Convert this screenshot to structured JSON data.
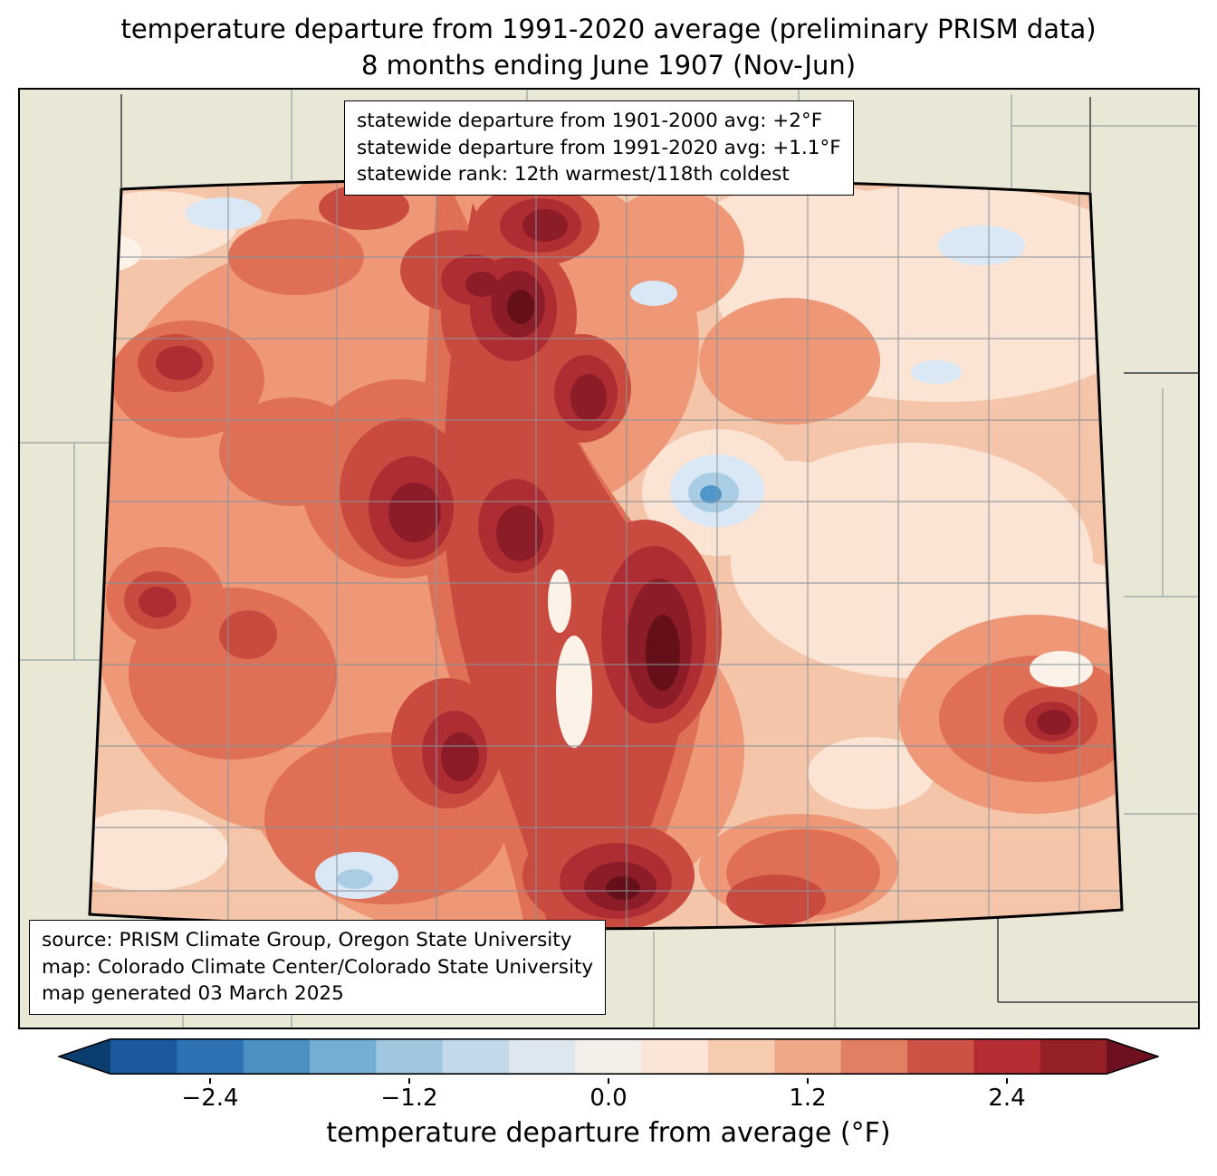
{
  "title": {
    "line1": "temperature departure from 1991-2020 average (preliminary PRISM data)",
    "line2": "8 months ending June 1907 (Nov-Jun)"
  },
  "stats_box": {
    "line1": "statewide departure from 1901-2000 avg: +2°F",
    "line2": "statewide departure from 1991-2020 avg: +1.1°F",
    "line3": "statewide rank: 12th warmest/118th coldest"
  },
  "source_box": {
    "line1": "source: PRISM Climate Group, Oregon State University",
    "line2": "map: Colorado Climate Center/Colorado State University",
    "line3": "map generated 03 March 2025"
  },
  "colorbar": {
    "label": "temperature departure from average (°F)",
    "ticks": [
      {
        "label": "−2.4",
        "pct": 10
      },
      {
        "label": "−1.2",
        "pct": 30
      },
      {
        "label": "0.0",
        "pct": 50
      },
      {
        "label": "1.2",
        "pct": 70
      },
      {
        "label": "2.4",
        "pct": 90
      }
    ],
    "segments": [
      "#1a5a9c",
      "#2d73b3",
      "#4a90c3",
      "#74afd3",
      "#9fc7e0",
      "#c3d9ea",
      "#dde7f0",
      "#f3f0ea",
      "#fae5d7",
      "#f7cbb0",
      "#f0a888",
      "#e17f64",
      "#cd5246",
      "#b52c33",
      "#952127"
    ],
    "extend_left": "#0b3d6f",
    "extend_right": "#6d1120",
    "value_min": -3.0,
    "value_max": 3.0
  },
  "map": {
    "region": "Colorado",
    "background_outside": "#e9e8d6",
    "state_border_color": "#000000",
    "county_line_color": "#8a939b",
    "base_fill": "#f5c5a9",
    "anomaly_spot_color": "#4f96cb"
  }
}
